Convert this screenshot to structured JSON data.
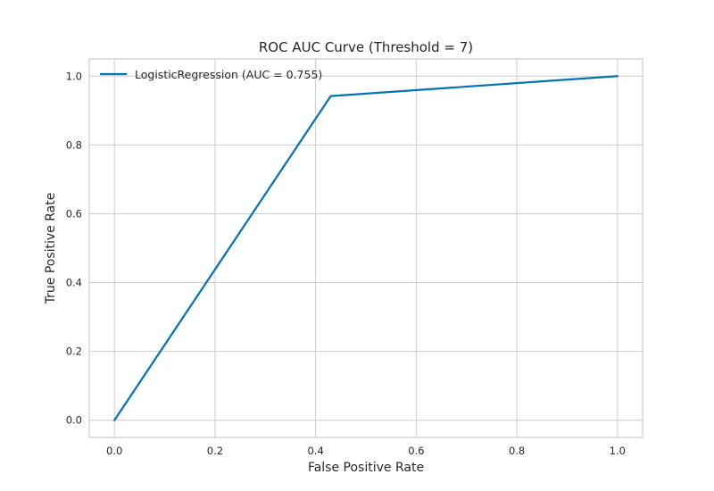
{
  "chart_data": {
    "type": "line",
    "title": "ROC AUC Curve (Threshold = 7)",
    "xlabel": "False Positive Rate",
    "ylabel": "True Positive Rate",
    "xlim": [
      -0.05,
      1.05
    ],
    "ylim": [
      -0.05,
      1.05
    ],
    "xticks": [
      0.0,
      0.2,
      0.4,
      0.6,
      0.8,
      1.0
    ],
    "yticks": [
      0.0,
      0.2,
      0.4,
      0.6,
      0.8,
      1.0
    ],
    "xtick_labels": [
      "0.0",
      "0.2",
      "0.4",
      "0.6",
      "0.8",
      "1.0"
    ],
    "ytick_labels": [
      "0.0",
      "0.2",
      "0.4",
      "0.6",
      "0.8",
      "1.0"
    ],
    "grid": true,
    "legend_position": "top-left",
    "series": [
      {
        "name": "LogisticRegression (AUC = 0.755)",
        "color": "#0072b2",
        "x": [
          0.0,
          0.43,
          1.0
        ],
        "y": [
          0.0,
          0.942,
          1.0
        ]
      }
    ]
  }
}
